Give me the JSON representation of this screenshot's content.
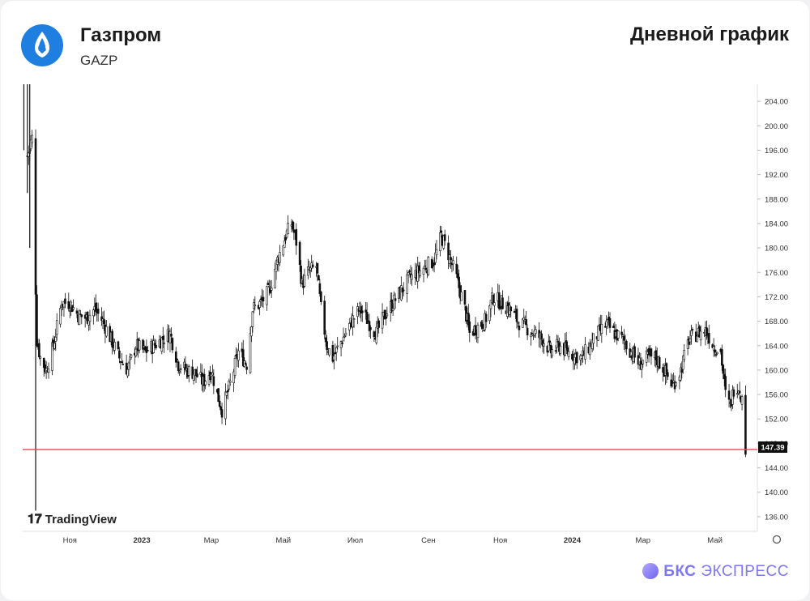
{
  "header": {
    "company": "Газпром",
    "ticker": "GAZP",
    "chart_title": "Дневной график",
    "logo_icon": "gazprom-flame-icon"
  },
  "watermark": "TradingView",
  "brand": {
    "bold": "БКС",
    "rest": "ЭКСПРЕСС",
    "color": "#7d77f5"
  },
  "chart_data": {
    "type": "candlestick",
    "title": "",
    "xlabel": "",
    "ylabel": "",
    "x_ticks": [
      "Ноя",
      "2023",
      "Мар",
      "Май",
      "Июл",
      "Сен",
      "Ноя",
      "2024",
      "Мар",
      "Май"
    ],
    "y_ticks": [
      "204.00",
      "200.00",
      "196.00",
      "192.00",
      "188.00",
      "184.00",
      "180.00",
      "176.00",
      "172.00",
      "168.00",
      "164.00",
      "160.00",
      "156.00",
      "152.00",
      "148.00",
      "144.00",
      "140.00",
      "136.00"
    ],
    "ylim": [
      133.6,
      206.8
    ],
    "xlim": [
      "2022-09-22",
      "2024-06-06"
    ],
    "last_price": "147.39",
    "horizontal_line": {
      "value": 147.0,
      "color": "#e04a55"
    },
    "candle_color": "#111111",
    "price_path": [
      [
        "2022-09-26",
        195
      ],
      [
        "2022-09-30",
        198
      ],
      [
        "2022-10-04",
        165
      ],
      [
        "2022-10-07",
        162
      ],
      [
        "2022-10-12",
        160
      ],
      [
        "2022-10-18",
        164
      ],
      [
        "2022-10-25",
        171
      ],
      [
        "2022-11-01",
        171
      ],
      [
        "2022-11-08",
        169
      ],
      [
        "2022-11-15",
        168.5
      ],
      [
        "2022-11-22",
        170
      ],
      [
        "2022-11-29",
        168
      ],
      [
        "2022-12-06",
        165
      ],
      [
        "2022-12-13",
        162
      ],
      [
        "2022-12-20",
        160
      ],
      [
        "2022-12-27",
        164
      ],
      [
        "2023-01-04",
        163
      ],
      [
        "2023-01-11",
        164
      ],
      [
        "2023-01-18",
        165
      ],
      [
        "2023-01-25",
        166
      ],
      [
        "2023-02-01",
        161
      ],
      [
        "2023-02-08",
        160
      ],
      [
        "2023-02-15",
        159.5
      ],
      [
        "2023-02-22",
        158
      ],
      [
        "2023-03-01",
        160
      ],
      [
        "2023-03-06",
        156
      ],
      [
        "2023-03-10",
        153.5
      ],
      [
        "2023-03-16",
        157
      ],
      [
        "2023-03-24",
        163
      ],
      [
        "2023-03-31",
        161
      ],
      [
        "2023-04-05",
        170
      ],
      [
        "2023-04-12",
        171
      ],
      [
        "2023-04-19",
        173
      ],
      [
        "2023-04-26",
        178
      ],
      [
        "2023-05-03",
        182
      ],
      [
        "2023-05-08",
        184
      ],
      [
        "2023-05-12",
        181
      ],
      [
        "2023-05-17",
        174
      ],
      [
        "2023-05-22",
        176
      ],
      [
        "2023-05-29",
        177
      ],
      [
        "2023-06-02",
        170
      ],
      [
        "2023-06-07",
        164
      ],
      [
        "2023-06-12",
        162
      ],
      [
        "2023-06-20",
        165
      ],
      [
        "2023-06-28",
        168
      ],
      [
        "2023-07-05",
        170
      ],
      [
        "2023-07-12",
        168
      ],
      [
        "2023-07-19",
        166
      ],
      [
        "2023-07-26",
        169
      ],
      [
        "2023-08-02",
        171
      ],
      [
        "2023-08-09",
        173
      ],
      [
        "2023-08-16",
        175
      ],
      [
        "2023-08-23",
        176
      ],
      [
        "2023-08-30",
        177
      ],
      [
        "2023-09-06",
        178
      ],
      [
        "2023-09-12",
        182
      ],
      [
        "2023-09-18",
        179
      ],
      [
        "2023-09-25",
        175
      ],
      [
        "2023-10-02",
        170
      ],
      [
        "2023-10-06",
        166
      ],
      [
        "2023-10-12",
        167
      ],
      [
        "2023-10-19",
        168
      ],
      [
        "2023-10-26",
        172
      ],
      [
        "2023-11-02",
        171
      ],
      [
        "2023-11-09",
        170
      ],
      [
        "2023-11-16",
        168
      ],
      [
        "2023-11-23",
        167
      ],
      [
        "2023-11-30",
        166
      ],
      [
        "2023-12-07",
        165
      ],
      [
        "2023-12-14",
        163
      ],
      [
        "2023-12-21",
        164
      ],
      [
        "2023-12-28",
        163
      ],
      [
        "2024-01-09",
        162
      ],
      [
        "2024-01-16",
        164
      ],
      [
        "2024-01-23",
        166
      ],
      [
        "2024-01-30",
        167.5
      ],
      [
        "2024-02-06",
        166
      ],
      [
        "2024-02-13",
        165
      ],
      [
        "2024-02-20",
        163
      ],
      [
        "2024-02-27",
        161
      ],
      [
        "2024-03-05",
        162
      ],
      [
        "2024-03-12",
        162
      ],
      [
        "2024-03-19",
        160
      ],
      [
        "2024-03-26",
        157.5
      ],
      [
        "2024-04-02",
        160
      ],
      [
        "2024-04-09",
        165
      ],
      [
        "2024-04-16",
        166
      ],
      [
        "2024-04-23",
        166.5
      ],
      [
        "2024-04-30",
        164
      ],
      [
        "2024-05-06",
        163
      ],
      [
        "2024-05-10",
        156
      ],
      [
        "2024-05-14",
        154
      ],
      [
        "2024-05-18",
        158
      ],
      [
        "2024-05-22",
        157
      ],
      [
        "2024-05-24",
        155
      ],
      [
        "2024-05-27",
        147.4
      ]
    ]
  }
}
